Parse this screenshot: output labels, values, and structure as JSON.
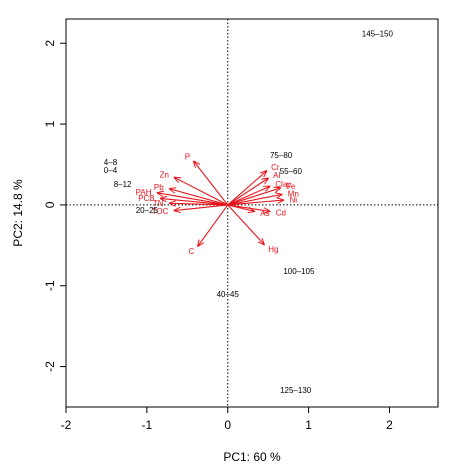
{
  "chart_data": {
    "type": "scatter",
    "subtype": "pca-biplot",
    "title": "",
    "xlabel": "PC1: 60 %",
    "ylabel": "PC2: 14.8 %",
    "xlim": [
      -2.0,
      2.6
    ],
    "ylim": [
      -2.5,
      2.3
    ],
    "xticks": [
      -2,
      -1,
      0,
      1,
      2
    ],
    "yticks": [
      -2,
      -1,
      0,
      1,
      2
    ],
    "reference_lines": {
      "x": 0,
      "y": 0,
      "style": "dotted"
    },
    "score_color": "#000000",
    "loading_color": "#e8141b",
    "scores": [
      {
        "label": "145–150",
        "x": 1.85,
        "y": 2.12
      },
      {
        "label": "75–80",
        "x": 0.66,
        "y": 0.62
      },
      {
        "label": "55–60",
        "x": 0.78,
        "y": 0.42
      },
      {
        "label": "4–8",
        "x": -1.45,
        "y": 0.53
      },
      {
        "label": "0–4",
        "x": -1.45,
        "y": 0.43
      },
      {
        "label": "8–12",
        "x": -1.3,
        "y": 0.26
      },
      {
        "label": "20–25",
        "x": -1.0,
        "y": -0.06
      },
      {
        "label": "100–105",
        "x": 0.88,
        "y": -0.82
      },
      {
        "label": "40–45",
        "x": 0.0,
        "y": -1.1
      },
      {
        "label": "125–130",
        "x": 0.84,
        "y": -2.29
      }
    ],
    "loadings": [
      {
        "label": "P",
        "x": -0.42,
        "y": 0.54
      },
      {
        "label": "Zn",
        "x": -0.66,
        "y": 0.34
      },
      {
        "label": "Pb",
        "x": -0.72,
        "y": 0.2
      },
      {
        "label": "PAH",
        "x": -0.87,
        "y": 0.15
      },
      {
        "label": "PCB",
        "x": -0.83,
        "y": 0.08
      },
      {
        "label": "TN",
        "x": -0.72,
        "y": 0.02
      },
      {
        "label": "TOC",
        "x": -0.66,
        "y": -0.07
      },
      {
        "label": "C",
        "x": -0.37,
        "y": -0.51
      },
      {
        "label": "Cr",
        "x": 0.48,
        "y": 0.42
      },
      {
        "label": "Al",
        "x": 0.5,
        "y": 0.33
      },
      {
        "label": "Clay",
        "x": 0.52,
        "y": 0.23
      },
      {
        "label": "Fe",
        "x": 0.65,
        "y": 0.21
      },
      {
        "label": "Mn",
        "x": 0.67,
        "y": 0.13
      },
      {
        "label": "Ni",
        "x": 0.69,
        "y": 0.06
      },
      {
        "label": "As",
        "x": 0.33,
        "y": -0.08
      },
      {
        "label": "Cd",
        "x": 0.52,
        "y": -0.08
      },
      {
        "label": "Hg",
        "x": 0.45,
        "y": -0.49
      }
    ]
  }
}
